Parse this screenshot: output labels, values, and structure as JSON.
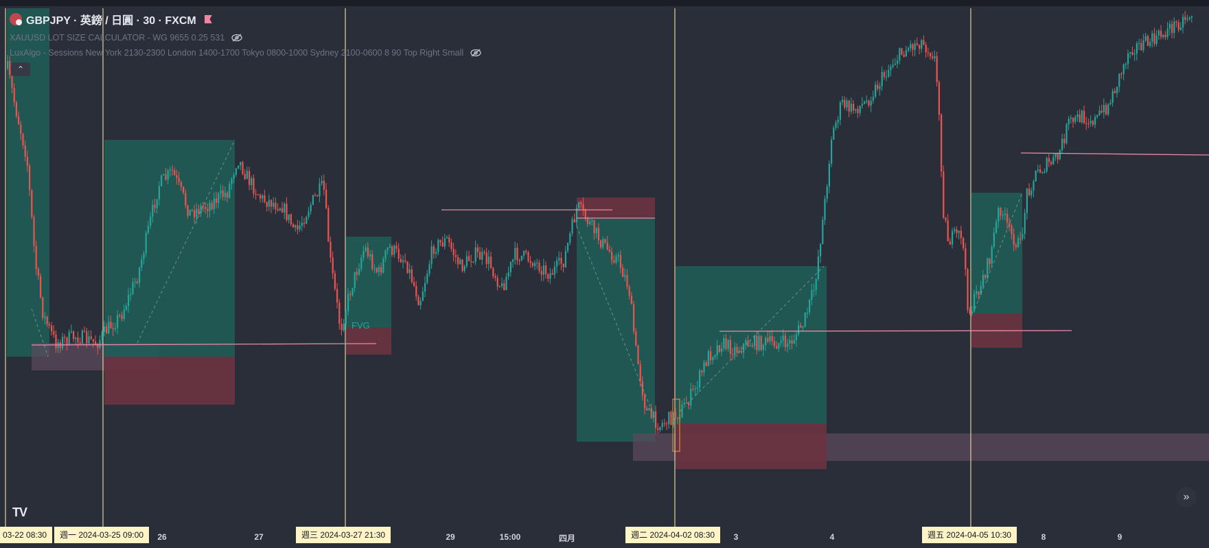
{
  "header": {
    "symbol_title": "GBPJPY · 英鎊 / 日圓 · 30 · FXCM",
    "indicators": [
      "XAUUSD LOT SIZE CALCULATOR - WG 9655 0.25 531",
      "LuxAlgo - Sessions New York 2130-2300 London 1400-1700 Tokyo 0800-1000 Sydney 2100-0600 8 90 Top Right Small"
    ],
    "icons": {
      "symbol": "symbol-flag-icon",
      "mark": "pink-flag-icon",
      "visibility": "eye-off-icon",
      "collapse": "chevron-up-icon"
    }
  },
  "labels": {
    "fvg": "FVG"
  },
  "time_axis": {
    "ticks": [
      "26",
      "27",
      "29",
      "15:00",
      "四月",
      "3",
      "4",
      "8",
      "9"
    ],
    "crosshair_labels": [
      "03-22   08:30",
      "週一 2024-03-25   09:00",
      "週三 2024-03-27   21:30",
      "週二 2024-04-02   08:30",
      "週五 2024-04-05   10:30"
    ]
  },
  "logo": "TV",
  "scroll_label": "»",
  "colors": {
    "background": "#2a2e39",
    "up": "#26a69a",
    "down": "#ef5350",
    "profit_box": "#1f5c56",
    "loss_box": "#6b3340",
    "level_line": "#e88aa6",
    "crosshair": "#fff4c6"
  }
}
